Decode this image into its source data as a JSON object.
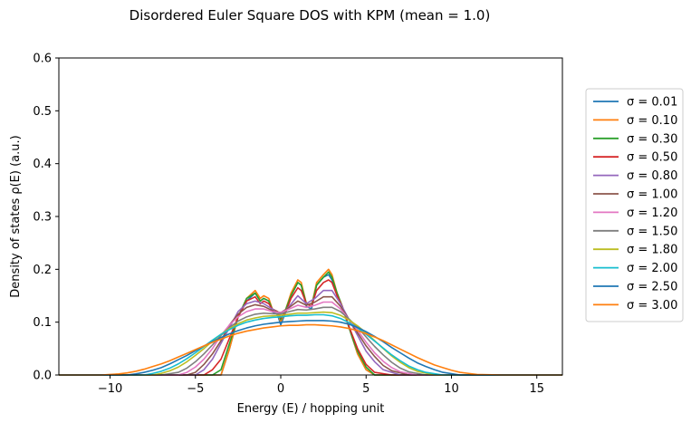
{
  "chart_data": {
    "type": "line",
    "title": "Disordered Euler Square DOS with KPM (mean = 1.0)",
    "xlabel": "Energy (E) / hopping unit",
    "ylabel": "Density of states ρ(E) (a.u.)",
    "xlim": [
      -13,
      16.5
    ],
    "ylim": [
      0,
      0.6
    ],
    "xticks": [
      -10,
      -5,
      0,
      5,
      10,
      15
    ],
    "xtick_labels": [
      "−10",
      "−5",
      "0",
      "5",
      "10",
      "15"
    ],
    "yticks": [
      0.0,
      0.1,
      0.2,
      0.3,
      0.4,
      0.5,
      0.6
    ],
    "ytick_labels": [
      "0.0",
      "0.1",
      "0.2",
      "0.3",
      "0.4",
      "0.5",
      "0.6"
    ],
    "grid": false,
    "legend_position": "right-outside",
    "series": [
      {
        "name": "σ = 0.01",
        "color": "#1f77b4",
        "x": [
          -13,
          -4,
          -3.5,
          -3,
          -2.5,
          -2,
          -1.5,
          -1.2,
          -1,
          -0.7,
          -0.5,
          -0.2,
          0,
          0.3,
          0.6,
          1,
          1.2,
          1.5,
          1.8,
          2.1,
          2.5,
          2.8,
          3,
          3.3,
          3.6,
          3.9,
          4.2,
          4.5,
          5,
          5.5,
          6,
          16.5
        ],
        "y": [
          0,
          0,
          0,
          0.05,
          0.11,
          0.14,
          0.155,
          0.14,
          0.145,
          0.14,
          0.12,
          0.115,
          0.095,
          0.12,
          0.15,
          0.175,
          0.17,
          0.13,
          0.125,
          0.17,
          0.185,
          0.19,
          0.18,
          0.15,
          0.13,
          0.1,
          0.07,
          0.04,
          0.01,
          0,
          0,
          0
        ]
      },
      {
        "name": "σ = 0.10",
        "color": "#ff7f0e",
        "x": [
          -13,
          -4,
          -3.5,
          -3,
          -2.5,
          -2,
          -1.5,
          -1.2,
          -1,
          -0.7,
          -0.5,
          -0.2,
          0,
          0.3,
          0.6,
          1,
          1.2,
          1.5,
          1.8,
          2.1,
          2.5,
          2.8,
          3,
          3.3,
          3.6,
          3.9,
          4.2,
          4.5,
          5,
          5.5,
          6,
          16.5
        ],
        "y": [
          0,
          0,
          0,
          0.05,
          0.11,
          0.145,
          0.16,
          0.145,
          0.15,
          0.145,
          0.125,
          0.12,
          0.1,
          0.125,
          0.155,
          0.18,
          0.175,
          0.135,
          0.13,
          0.175,
          0.19,
          0.2,
          0.19,
          0.155,
          0.13,
          0.1,
          0.07,
          0.04,
          0.01,
          0,
          0,
          0
        ]
      },
      {
        "name": "σ = 0.30",
        "color": "#2ca02c",
        "x": [
          -13,
          -4,
          -3.5,
          -3,
          -2.5,
          -2,
          -1.5,
          -1.2,
          -1,
          -0.7,
          -0.5,
          -0.2,
          0,
          0.3,
          0.6,
          1,
          1.2,
          1.5,
          1.8,
          2.1,
          2.5,
          2.8,
          3,
          3.3,
          3.6,
          3.9,
          4.2,
          4.5,
          5,
          5.5,
          6,
          16.5
        ],
        "y": [
          0,
          0,
          0.01,
          0.06,
          0.11,
          0.145,
          0.155,
          0.14,
          0.145,
          0.14,
          0.125,
          0.12,
          0.105,
          0.125,
          0.15,
          0.175,
          0.17,
          0.135,
          0.13,
          0.17,
          0.185,
          0.195,
          0.185,
          0.155,
          0.13,
          0.1,
          0.07,
          0.045,
          0.015,
          0,
          0,
          0
        ]
      },
      {
        "name": "σ = 0.50",
        "color": "#d62728",
        "x": [
          -13,
          -4.5,
          -4,
          -3.5,
          -3,
          -2.5,
          -2,
          -1.5,
          -1.2,
          -1,
          -0.7,
          -0.5,
          -0.2,
          0,
          0.3,
          0.6,
          1,
          1.2,
          1.5,
          1.8,
          2.1,
          2.5,
          2.8,
          3,
          3.3,
          3.6,
          3.9,
          4.2,
          4.5,
          5,
          5.5,
          6.5,
          16.5
        ],
        "y": [
          0,
          0,
          0.01,
          0.03,
          0.07,
          0.11,
          0.14,
          0.148,
          0.135,
          0.14,
          0.135,
          0.125,
          0.12,
          0.108,
          0.12,
          0.145,
          0.165,
          0.16,
          0.135,
          0.13,
          0.16,
          0.175,
          0.18,
          0.175,
          0.15,
          0.13,
          0.1,
          0.075,
          0.05,
          0.02,
          0.005,
          0,
          0
        ]
      },
      {
        "name": "σ = 0.80",
        "color": "#9467bd",
        "x": [
          -13,
          -5,
          -4.5,
          -4,
          -3.5,
          -3,
          -2.5,
          -2,
          -1.5,
          -1,
          -0.5,
          0,
          0.5,
          1,
          1.5,
          2,
          2.5,
          3,
          3.5,
          4,
          4.5,
          5,
          5.5,
          6,
          7,
          16.5
        ],
        "y": [
          0,
          0,
          0.01,
          0.03,
          0.06,
          0.09,
          0.12,
          0.135,
          0.14,
          0.135,
          0.125,
          0.115,
          0.13,
          0.15,
          0.135,
          0.145,
          0.16,
          0.16,
          0.135,
          0.105,
          0.075,
          0.045,
          0.025,
          0.01,
          0,
          0
        ]
      },
      {
        "name": "σ = 1.00",
        "color": "#8c564b",
        "x": [
          -13,
          -5.5,
          -5,
          -4.5,
          -4,
          -3.5,
          -3,
          -2.5,
          -2,
          -1.5,
          -1,
          -0.5,
          0,
          0.5,
          1,
          1.5,
          2,
          2.5,
          3,
          3.5,
          4,
          4.5,
          5,
          5.5,
          6,
          6.5,
          7.5,
          16.5
        ],
        "y": [
          0,
          0,
          0.005,
          0.02,
          0.04,
          0.065,
          0.095,
          0.115,
          0.128,
          0.133,
          0.13,
          0.122,
          0.118,
          0.128,
          0.14,
          0.132,
          0.138,
          0.148,
          0.148,
          0.13,
          0.105,
          0.08,
          0.055,
          0.035,
          0.018,
          0.008,
          0,
          0
        ]
      },
      {
        "name": "σ = 1.20",
        "color": "#e377c2",
        "x": [
          -13,
          -6,
          -5.5,
          -5,
          -4.5,
          -4,
          -3.5,
          -3,
          -2.5,
          -2,
          -1.5,
          -1,
          -0.5,
          0,
          0.5,
          1,
          1.5,
          2,
          2.5,
          3,
          3.5,
          4,
          4.5,
          5,
          5.5,
          6,
          6.5,
          7,
          8,
          16.5
        ],
        "y": [
          0,
          0,
          0.005,
          0.015,
          0.03,
          0.05,
          0.075,
          0.095,
          0.11,
          0.12,
          0.125,
          0.125,
          0.12,
          0.118,
          0.125,
          0.132,
          0.128,
          0.132,
          0.138,
          0.138,
          0.125,
          0.105,
          0.085,
          0.062,
          0.042,
          0.026,
          0.014,
          0.006,
          0,
          0
        ]
      },
      {
        "name": "σ = 1.50",
        "color": "#7f7f7f",
        "x": [
          -13,
          -7,
          -6,
          -5.5,
          -5,
          -4.5,
          -4,
          -3.5,
          -3,
          -2.5,
          -2,
          -1.5,
          -1,
          -0.5,
          0,
          0.5,
          1,
          1.5,
          2,
          2.5,
          3,
          3.5,
          4,
          4.5,
          5,
          5.5,
          6,
          6.5,
          7,
          7.5,
          8.5,
          16.5
        ],
        "y": [
          0,
          0,
          0.005,
          0.013,
          0.025,
          0.04,
          0.057,
          0.075,
          0.09,
          0.102,
          0.11,
          0.115,
          0.117,
          0.116,
          0.116,
          0.12,
          0.124,
          0.123,
          0.125,
          0.128,
          0.128,
          0.12,
          0.106,
          0.09,
          0.072,
          0.054,
          0.038,
          0.024,
          0.013,
          0.006,
          0,
          0
        ]
      },
      {
        "name": "σ = 1.80",
        "color": "#bcbd22",
        "x": [
          -13,
          -7.5,
          -7,
          -6.5,
          -6,
          -5.5,
          -5,
          -4.5,
          -4,
          -3.5,
          -3,
          -2.5,
          -2,
          -1.5,
          -1,
          -0.5,
          0,
          0.5,
          1,
          1.5,
          2,
          2.5,
          3,
          3.5,
          4,
          4.5,
          5,
          5.5,
          6,
          6.5,
          7,
          7.5,
          8,
          9,
          16.5
        ],
        "y": [
          0,
          0,
          0.003,
          0.008,
          0.015,
          0.025,
          0.037,
          0.05,
          0.064,
          0.077,
          0.088,
          0.097,
          0.104,
          0.108,
          0.111,
          0.112,
          0.113,
          0.115,
          0.117,
          0.117,
          0.118,
          0.119,
          0.118,
          0.113,
          0.104,
          0.093,
          0.08,
          0.065,
          0.05,
          0.036,
          0.024,
          0.014,
          0.007,
          0,
          0
        ]
      },
      {
        "name": "σ = 2.00",
        "color": "#17becf",
        "x": [
          -13,
          -8,
          -7.5,
          -7,
          -6.5,
          -6,
          -5.5,
          -5,
          -4.5,
          -4,
          -3.5,
          -3,
          -2.5,
          -2,
          -1.5,
          -1,
          -0.5,
          0,
          0.5,
          1,
          1.5,
          2,
          2.5,
          3,
          3.5,
          4,
          4.5,
          5,
          5.5,
          6,
          6.5,
          7,
          7.5,
          8,
          8.5,
          9.5,
          16.5
        ],
        "y": [
          0,
          0,
          0.003,
          0.007,
          0.013,
          0.021,
          0.031,
          0.042,
          0.054,
          0.066,
          0.077,
          0.086,
          0.094,
          0.1,
          0.104,
          0.107,
          0.109,
          0.11,
          0.112,
          0.113,
          0.113,
          0.114,
          0.114,
          0.112,
          0.107,
          0.099,
          0.089,
          0.077,
          0.064,
          0.051,
          0.038,
          0.027,
          0.017,
          0.01,
          0.005,
          0,
          0
        ]
      },
      {
        "name": "σ = 2.50",
        "color": "#1f77b4",
        "x": [
          -13,
          -9,
          -8.5,
          -8,
          -7.5,
          -7,
          -6.5,
          -6,
          -5.5,
          -5,
          -4.5,
          -4,
          -3.5,
          -3,
          -2.5,
          -2,
          -1.5,
          -1,
          -0.5,
          0,
          0.5,
          1,
          1.5,
          2,
          2.5,
          3,
          3.5,
          4,
          4.5,
          5,
          5.5,
          6,
          6.5,
          7,
          7.5,
          8,
          8.5,
          9,
          9.5,
          10.5,
          16.5
        ],
        "y": [
          0,
          0,
          0.002,
          0.005,
          0.009,
          0.014,
          0.021,
          0.029,
          0.037,
          0.046,
          0.055,
          0.063,
          0.071,
          0.078,
          0.084,
          0.089,
          0.093,
          0.096,
          0.098,
          0.1,
          0.101,
          0.102,
          0.103,
          0.103,
          0.103,
          0.102,
          0.1,
          0.096,
          0.09,
          0.082,
          0.073,
          0.063,
          0.052,
          0.042,
          0.032,
          0.023,
          0.016,
          0.01,
          0.005,
          0,
          0
        ]
      },
      {
        "name": "σ = 3.00",
        "color": "#ff7f0e",
        "x": [
          -13,
          -10.5,
          -10,
          -9.5,
          -9,
          -8.5,
          -8,
          -7.5,
          -7,
          -6.5,
          -6,
          -5.5,
          -5,
          -4.5,
          -4,
          -3.5,
          -3,
          -2.5,
          -2,
          -1.5,
          -1,
          -0.5,
          0,
          0.5,
          1,
          1.5,
          2,
          2.5,
          3,
          3.5,
          4,
          4.5,
          5,
          5.5,
          6,
          6.5,
          7,
          7.5,
          8,
          8.5,
          9,
          9.5,
          10,
          10.5,
          11,
          11.5,
          13,
          16.5
        ],
        "y": [
          0,
          0,
          0.001,
          0.002,
          0.004,
          0.007,
          0.011,
          0.016,
          0.021,
          0.027,
          0.034,
          0.041,
          0.048,
          0.055,
          0.062,
          0.068,
          0.074,
          0.079,
          0.083,
          0.086,
          0.089,
          0.091,
          0.093,
          0.094,
          0.094,
          0.095,
          0.095,
          0.094,
          0.093,
          0.091,
          0.088,
          0.084,
          0.078,
          0.072,
          0.065,
          0.057,
          0.049,
          0.041,
          0.033,
          0.026,
          0.019,
          0.014,
          0.009,
          0.005,
          0.003,
          0.001,
          0,
          0
        ]
      }
    ]
  }
}
